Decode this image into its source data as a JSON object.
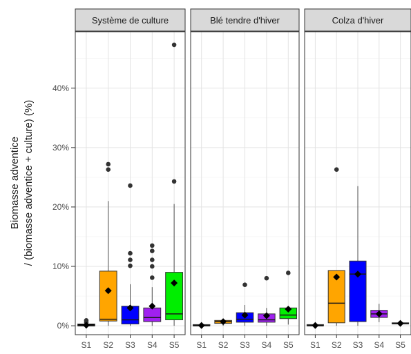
{
  "chart_data": {
    "type": "boxplot",
    "ylabel_line1": "Biomasse adventice",
    "ylabel_line2": "/ (biomasse adventice + culture) (%)",
    "ylim": [
      -1.5,
      49.5
    ],
    "y_ticks": [
      0,
      10,
      20,
      30,
      40
    ],
    "y_tick_labels": [
      "0%",
      "10%",
      "20%",
      "30%",
      "40%"
    ],
    "grid": true,
    "colors": {
      "S1": "#000000",
      "S2": "#ffa500",
      "S3": "#0000ff",
      "S4": "#a020f0",
      "S5": "#00ee00"
    },
    "panels": [
      {
        "title": "Système de culture",
        "boxes": [
          {
            "group": "S1",
            "q1": 0,
            "median": 0,
            "q3": 0.3,
            "whisker_low": 0,
            "whisker_high": 0.4,
            "mean": 0.1,
            "outliers": [
              0.6,
              0.9
            ]
          },
          {
            "group": "S2",
            "q1": 0.8,
            "median": 1.1,
            "q3": 9.2,
            "whisker_low": 0,
            "whisker_high": 21,
            "mean": 5.9,
            "outliers": [
              26.3,
              27.2
            ]
          },
          {
            "group": "S3",
            "q1": 0.3,
            "median": 1.0,
            "q3": 3.3,
            "whisker_low": 0,
            "whisker_high": 7.0,
            "mean": 3.0,
            "outliers": [
              10.1,
              11.1,
              12.2,
              23.6
            ]
          },
          {
            "group": "S4",
            "q1": 0.7,
            "median": 1.4,
            "q3": 3.0,
            "whisker_low": 0,
            "whisker_high": 6.5,
            "mean": 3.3,
            "outliers": [
              8.1,
              10.0,
              11.1,
              12.6,
              13.5
            ]
          },
          {
            "group": "S5",
            "q1": 1.0,
            "median": 2.0,
            "q3": 9.0,
            "whisker_low": 0,
            "whisker_high": 20.5,
            "mean": 7.2,
            "outliers": [
              24.3,
              47.3
            ]
          }
        ]
      },
      {
        "title": "Blé tendre d'hiver",
        "boxes": [
          {
            "group": "S1",
            "q1": 0,
            "median": 0,
            "q3": 0.2,
            "whisker_low": 0,
            "whisker_high": 0.3,
            "mean": 0.05,
            "outliers": []
          },
          {
            "group": "S2",
            "q1": 0.4,
            "median": 0.7,
            "q3": 0.9,
            "whisker_low": 0,
            "whisker_high": 1.1,
            "mean": 0.7,
            "outliers": []
          },
          {
            "group": "S3",
            "q1": 0.6,
            "median": 1.1,
            "q3": 2.2,
            "whisker_low": 0,
            "whisker_high": 3.5,
            "mean": 1.8,
            "outliers": [
              6.9
            ]
          },
          {
            "group": "S4",
            "q1": 0.6,
            "median": 1.0,
            "q3": 2.0,
            "whisker_low": 0,
            "whisker_high": 3.0,
            "mean": 1.7,
            "outliers": [
              8.0
            ]
          },
          {
            "group": "S5",
            "q1": 1.2,
            "median": 1.8,
            "q3": 3.0,
            "whisker_low": 0.2,
            "whisker_high": 3.3,
            "mean": 2.8,
            "outliers": [
              8.9
            ]
          }
        ]
      },
      {
        "title": "Colza d'hiver",
        "boxes": [
          {
            "group": "S1",
            "q1": 0,
            "median": 0,
            "q3": 0.2,
            "whisker_low": 0,
            "whisker_high": 0.3,
            "mean": 0.05,
            "outliers": []
          },
          {
            "group": "S2",
            "q1": 0.5,
            "median": 3.8,
            "q3": 9.3,
            "whisker_low": 0,
            "whisker_high": 9.3,
            "mean": 8.2,
            "outliers": [
              26.3
            ]
          },
          {
            "group": "S3",
            "q1": 0.7,
            "median": 8.7,
            "q3": 10.9,
            "whisker_low": 0,
            "whisker_high": 23.5,
            "mean": 8.7,
            "outliers": []
          },
          {
            "group": "S4",
            "q1": 1.4,
            "median": 2.0,
            "q3": 2.6,
            "whisker_low": 0.6,
            "whisker_high": 3.7,
            "mean": 2.0,
            "outliers": []
          },
          {
            "group": "S5",
            "q1": 0.3,
            "median": 0.4,
            "q3": 0.5,
            "whisker_low": 0.2,
            "whisker_high": 0.6,
            "mean": 0.4,
            "outliers": []
          }
        ]
      }
    ]
  }
}
